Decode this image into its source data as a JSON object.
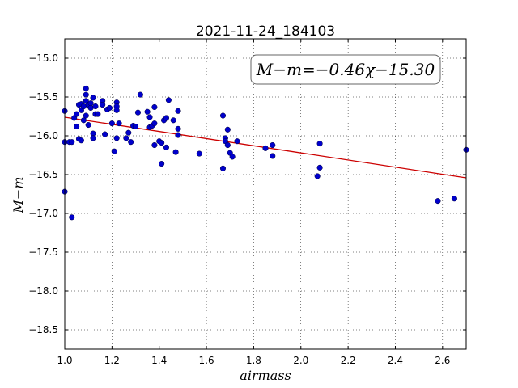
{
  "chart_data": {
    "type": "scatter",
    "title": "2021-11-24_184103",
    "xlabel": "airmass",
    "ylabel": "M−m",
    "xlim": [
      1.0,
      2.7
    ],
    "ylim": [
      -18.75,
      -14.75
    ],
    "y_inverted": true,
    "grid": true,
    "xticks": [
      1.0,
      1.2,
      1.4,
      1.6,
      1.8,
      2.0,
      2.2,
      2.4,
      2.6
    ],
    "xtick_labels": [
      "1.0",
      "1.2",
      "1.4",
      "1.6",
      "1.8",
      "2.0",
      "2.2",
      "2.4",
      "2.6"
    ],
    "yticks": [
      -15.0,
      -15.5,
      -16.0,
      -16.5,
      -17.0,
      -17.5,
      -18.0,
      -18.5
    ],
    "ytick_labels": [
      "−15.0",
      "−15.5",
      "−16.0",
      "−16.5",
      "−17.0",
      "−17.5",
      "−18.0",
      "−18.5"
    ],
    "annotation": "M−m=−0.46χ−15.30",
    "point_color": "#0000cc",
    "fit_color": "#cc0000",
    "fit": {
      "slope": -0.46,
      "intercept": -15.3,
      "x_range": [
        1.0,
        2.7
      ]
    },
    "points": [
      [
        1.0,
        -15.68
      ],
      [
        1.0,
        -16.08
      ],
      [
        1.0,
        -16.72
      ],
      [
        1.02,
        -16.08
      ],
      [
        1.03,
        -16.08
      ],
      [
        1.03,
        -17.05
      ],
      [
        1.04,
        -15.77
      ],
      [
        1.05,
        -15.88
      ],
      [
        1.05,
        -15.72
      ],
      [
        1.06,
        -15.6
      ],
      [
        1.06,
        -16.04
      ],
      [
        1.07,
        -16.06
      ],
      [
        1.07,
        -15.67
      ],
      [
        1.07,
        -15.59
      ],
      [
        1.08,
        -15.8
      ],
      [
        1.08,
        -15.62
      ],
      [
        1.09,
        -15.39
      ],
      [
        1.09,
        -15.47
      ],
      [
        1.09,
        -15.55
      ],
      [
        1.09,
        -15.74
      ],
      [
        1.1,
        -15.6
      ],
      [
        1.1,
        -15.86
      ],
      [
        1.11,
        -15.58
      ],
      [
        1.11,
        -15.64
      ],
      [
        1.12,
        -15.97
      ],
      [
        1.12,
        -16.03
      ],
      [
        1.12,
        -15.51
      ],
      [
        1.13,
        -15.62
      ],
      [
        1.13,
        -15.72
      ],
      [
        1.14,
        -15.72
      ],
      [
        1.16,
        -15.55
      ],
      [
        1.16,
        -15.6
      ],
      [
        1.17,
        -15.98
      ],
      [
        1.18,
        -15.66
      ],
      [
        1.19,
        -15.64
      ],
      [
        1.2,
        -15.84
      ],
      [
        1.21,
        -16.2
      ],
      [
        1.22,
        -16.03
      ],
      [
        1.22,
        -15.57
      ],
      [
        1.22,
        -15.62
      ],
      [
        1.22,
        -15.67
      ],
      [
        1.23,
        -15.84
      ],
      [
        1.26,
        -16.03
      ],
      [
        1.27,
        -15.96
      ],
      [
        1.28,
        -16.08
      ],
      [
        1.29,
        -15.87
      ],
      [
        1.3,
        -15.88
      ],
      [
        1.31,
        -15.7
      ],
      [
        1.32,
        -15.47
      ],
      [
        1.35,
        -15.69
      ],
      [
        1.36,
        -15.76
      ],
      [
        1.36,
        -15.89
      ],
      [
        1.37,
        -15.87
      ],
      [
        1.38,
        -15.63
      ],
      [
        1.38,
        -15.84
      ],
      [
        1.38,
        -16.12
      ],
      [
        1.4,
        -16.07
      ],
      [
        1.41,
        -16.36
      ],
      [
        1.41,
        -16.09
      ],
      [
        1.42,
        -15.8
      ],
      [
        1.43,
        -15.77
      ],
      [
        1.43,
        -16.15
      ],
      [
        1.44,
        -15.54
      ],
      [
        1.46,
        -15.8
      ],
      [
        1.47,
        -16.21
      ],
      [
        1.48,
        -15.99
      ],
      [
        1.48,
        -15.91
      ],
      [
        1.48,
        -15.68
      ],
      [
        1.57,
        -16.23
      ],
      [
        1.67,
        -16.42
      ],
      [
        1.67,
        -15.74
      ],
      [
        1.68,
        -16.03
      ],
      [
        1.68,
        -16.07
      ],
      [
        1.69,
        -15.92
      ],
      [
        1.69,
        -16.12
      ],
      [
        1.7,
        -16.22
      ],
      [
        1.71,
        -16.27
      ],
      [
        1.73,
        -16.07
      ],
      [
        1.85,
        -16.16
      ],
      [
        1.88,
        -16.12
      ],
      [
        1.88,
        -16.26
      ],
      [
        2.07,
        -16.52
      ],
      [
        2.08,
        -16.1
      ],
      [
        2.08,
        -16.41
      ],
      [
        2.58,
        -16.84
      ],
      [
        2.65,
        -16.81
      ],
      [
        2.7,
        -16.18
      ]
    ]
  }
}
